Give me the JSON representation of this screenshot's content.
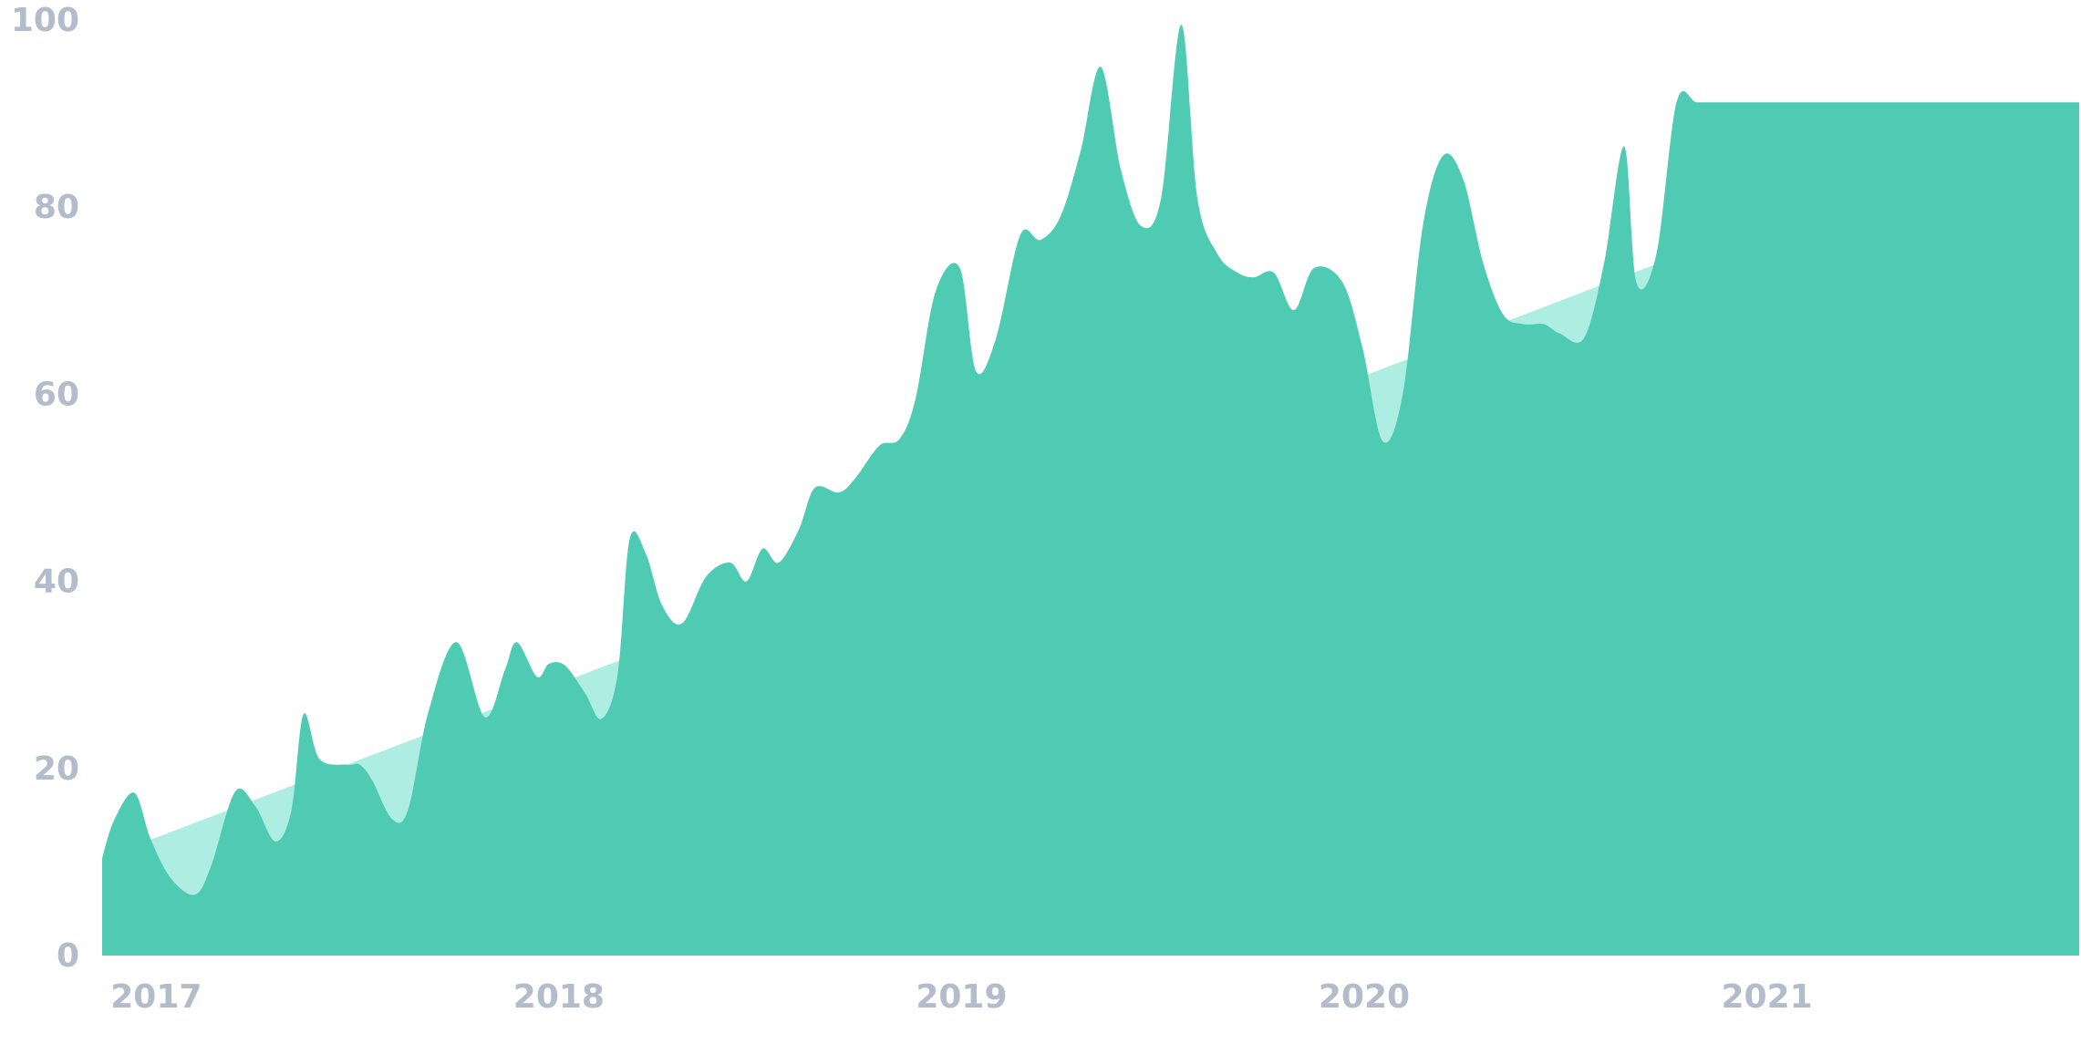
{
  "chart_data": {
    "type": "area",
    "title": "",
    "xlabel": "",
    "ylabel": "",
    "ylim": [
      0,
      100
    ],
    "xlim": [
      2016.97,
      2021.88
    ],
    "grid": false,
    "legend": "none",
    "y_ticks": [
      "0",
      "20",
      "40",
      "60",
      "80",
      "100"
    ],
    "x_ticks": [
      "2017",
      "2018",
      "2019",
      "2020",
      "2021"
    ],
    "colors": {
      "series_fill": "#4fcbb3",
      "trend_fill": "#adede2",
      "tick_text": "#b3bccb"
    },
    "trend": {
      "x": [
        2016.97,
        2021.88
      ],
      "y": [
        10.4,
        91.2
      ]
    },
    "series": [
      {
        "x": [
          2016.97,
          2017.0,
          2017.05,
          2017.09,
          2017.14,
          2017.2,
          2017.24,
          2017.3,
          2017.35,
          2017.4,
          2017.44,
          2017.47,
          2017.51,
          2017.58,
          2017.61,
          2017.64,
          2017.69,
          2017.73,
          2017.78,
          2017.85,
          2017.92,
          2017.97,
          2018.0,
          2018.05,
          2018.08,
          2018.12,
          2018.17,
          2018.21,
          2018.25,
          2018.28,
          2018.32,
          2018.36,
          2018.41,
          2018.47,
          2018.53,
          2018.57,
          2018.61,
          2018.65,
          2018.7,
          2018.74,
          2018.8,
          2018.84,
          2018.9,
          2018.95,
          2018.99,
          2019.04,
          2019.1,
          2019.14,
          2019.19,
          2019.25,
          2019.3,
          2019.35,
          2019.4,
          2019.45,
          2019.5,
          2019.55,
          2019.6,
          2019.65,
          2019.69,
          2019.74,
          2019.79,
          2019.83,
          2019.88,
          2019.93,
          2019.98,
          2020.05,
          2020.1,
          2020.15,
          2020.2,
          2020.25,
          2020.3,
          2020.35,
          2020.4,
          2020.45,
          2020.5,
          2020.55,
          2020.59,
          2020.65,
          2020.7,
          2020.75,
          2020.78,
          2020.83,
          2020.88,
          2020.93,
          2020.98,
          2021.03,
          2021.08,
          2021.13,
          2021.18,
          2021.23,
          2021.28,
          2021.34,
          2021.4,
          2021.46,
          2021.52,
          2021.57,
          2021.62,
          2021.66,
          2021.7,
          2021.74,
          2021.8,
          2021.83,
          2021.88
        ],
        "values": [
          10.4,
          14.5,
          17.4,
          12.5,
          8.3,
          6.5,
          9.5,
          17.5,
          16.0,
          12.2,
          15.5,
          25.8,
          21.0,
          20.4,
          20.4,
          18.8,
          14.6,
          15.6,
          26.0,
          33.5,
          25.5,
          30.5,
          33.5,
          29.8,
          31.2,
          31.0,
          28.0,
          25.3,
          30.0,
          44.5,
          43.0,
          37.5,
          35.5,
          40.5,
          42.0,
          40.0,
          43.5,
          42.0,
          45.5,
          50.0,
          49.5,
          51.0,
          54.5,
          55.2,
          59.5,
          71.0,
          73.5,
          62.5,
          66.0,
          77.0,
          76.5,
          79.0,
          86.0,
          95.0,
          84.0,
          78.0,
          81.0,
          99.5,
          81.0,
          75.0,
          73.0,
          72.5,
          73.0,
          69.0,
          73.5,
          72.0,
          65.0,
          55.0,
          60.0,
          78.0,
          85.5,
          83.0,
          74.0,
          68.5,
          67.5,
          67.5,
          66.5,
          66.0,
          74.0,
          86.5,
          72.0,
          75.0,
          91.2,
          91.2,
          91.2,
          91.2,
          91.2,
          91.2,
          91.2,
          91.2,
          91.2,
          91.2,
          91.2,
          91.2,
          91.2,
          91.2,
          91.2,
          91.2,
          91.2,
          91.2,
          91.2,
          91.2,
          91.2
        ]
      }
    ]
  }
}
